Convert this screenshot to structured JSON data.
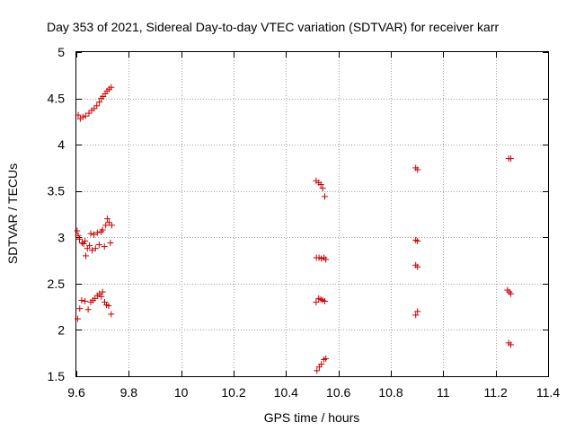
{
  "chart_data": {
    "type": "scatter",
    "title": "Day 353 of 2021, Sidereal Day-to-day VTEC variation (SDTVAR) for receiver karr",
    "xlabel": "GPS time / hours",
    "ylabel": "SDTVAR / TECUs",
    "xlim": [
      9.6,
      11.4
    ],
    "ylim": [
      1.5,
      5
    ],
    "xticks": [
      9.6,
      9.8,
      10,
      10.2,
      10.4,
      10.6,
      10.8,
      11,
      11.2,
      11.4
    ],
    "xtick_labels": [
      "9.6",
      "9.8",
      "10",
      "10.2",
      "10.4",
      "10.6",
      "10.8",
      "11",
      "11.2",
      "11.4"
    ],
    "yticks": [
      1.5,
      2,
      2.5,
      3,
      3.5,
      4,
      4.5,
      5
    ],
    "ytick_labels": [
      "1.5",
      "2",
      "2.5",
      "3",
      "3.5",
      "4",
      "4.5",
      "5"
    ],
    "grid": true,
    "marker_color": "#cc0000",
    "series": [
      {
        "name": "SDTVAR",
        "points": [
          [
            9.607,
            4.32
          ],
          [
            9.615,
            4.28
          ],
          [
            9.625,
            4.3
          ],
          [
            9.635,
            4.31
          ],
          [
            9.648,
            4.34
          ],
          [
            9.658,
            4.37
          ],
          [
            9.668,
            4.39
          ],
          [
            9.678,
            4.42
          ],
          [
            9.688,
            4.46
          ],
          [
            9.695,
            4.5
          ],
          [
            9.702,
            4.52
          ],
          [
            9.71,
            4.55
          ],
          [
            9.717,
            4.58
          ],
          [
            9.725,
            4.6
          ],
          [
            9.733,
            4.62
          ],
          [
            9.603,
            3.07
          ],
          [
            9.607,
            3.02
          ],
          [
            9.612,
            2.98
          ],
          [
            9.622,
            2.94
          ],
          [
            9.628,
            2.93
          ],
          [
            9.633,
            2.96
          ],
          [
            9.642,
            2.88
          ],
          [
            9.65,
            2.91
          ],
          [
            9.655,
            3.04
          ],
          [
            9.66,
            2.86
          ],
          [
            9.667,
            3.03
          ],
          [
            9.673,
            2.88
          ],
          [
            9.68,
            3.05
          ],
          [
            9.687,
            2.92
          ],
          [
            9.695,
            3.06
          ],
          [
            9.7,
            3.08
          ],
          [
            9.707,
            2.9
          ],
          [
            9.712,
            3.13
          ],
          [
            9.718,
            3.2
          ],
          [
            9.725,
            3.16
          ],
          [
            9.73,
            2.94
          ],
          [
            9.735,
            3.13
          ],
          [
            9.636,
            2.8
          ],
          [
            9.605,
            2.12
          ],
          [
            9.613,
            2.23
          ],
          [
            9.62,
            2.32
          ],
          [
            9.633,
            2.31
          ],
          [
            9.645,
            2.22
          ],
          [
            9.655,
            2.3
          ],
          [
            9.663,
            2.32
          ],
          [
            9.671,
            2.34
          ],
          [
            9.68,
            2.37
          ],
          [
            9.688,
            2.39
          ],
          [
            9.695,
            2.36
          ],
          [
            9.7,
            2.41
          ],
          [
            9.708,
            2.3
          ],
          [
            9.715,
            2.27
          ],
          [
            9.723,
            2.26
          ],
          [
            9.733,
            2.17
          ],
          [
            10.515,
            3.61
          ],
          [
            10.525,
            3.59
          ],
          [
            10.533,
            3.57
          ],
          [
            10.54,
            3.53
          ],
          [
            10.548,
            3.44
          ],
          [
            10.516,
            2.78
          ],
          [
            10.526,
            2.78
          ],
          [
            10.535,
            2.77
          ],
          [
            10.545,
            2.78
          ],
          [
            10.552,
            2.76
          ],
          [
            10.515,
            2.3
          ],
          [
            10.525,
            2.34
          ],
          [
            10.533,
            2.33
          ],
          [
            10.54,
            2.32
          ],
          [
            10.548,
            2.31
          ],
          [
            10.518,
            1.56
          ],
          [
            10.527,
            1.6
          ],
          [
            10.535,
            1.63
          ],
          [
            10.545,
            1.68
          ],
          [
            10.552,
            1.69
          ],
          [
            10.895,
            3.75
          ],
          [
            10.902,
            3.73
          ],
          [
            10.895,
            2.97
          ],
          [
            10.902,
            2.96
          ],
          [
            10.895,
            2.7
          ],
          [
            10.902,
            2.68
          ],
          [
            10.895,
            2.16
          ],
          [
            10.902,
            2.2
          ],
          [
            11.25,
            3.85
          ],
          [
            11.258,
            3.85
          ],
          [
            11.245,
            2.43
          ],
          [
            11.252,
            2.41
          ],
          [
            11.258,
            2.39
          ],
          [
            11.25,
            1.86
          ],
          [
            11.258,
            1.84
          ]
        ]
      }
    ]
  }
}
